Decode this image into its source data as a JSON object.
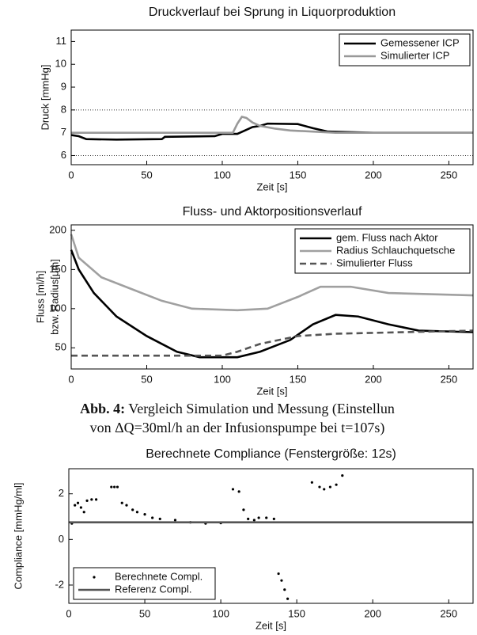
{
  "chart_data": [
    {
      "type": "line",
      "title": "Druckverlauf bei Sprung in Liquorproduktion",
      "xlabel": "Zeit [s]",
      "ylabel": [
        "Druck [mmHg]"
      ],
      "xlim": [
        0,
        266
      ],
      "xticks": [
        0,
        50,
        100,
        150,
        200,
        250
      ],
      "ylim": [
        5.6,
        11.5
      ],
      "yticks": [
        6,
        7,
        8,
        9,
        10,
        11
      ],
      "hlines": [
        6,
        8
      ],
      "legend": "upper right",
      "series": [
        {
          "name": "Gemessener ICP",
          "color": "#000000",
          "style": "solid",
          "x": [
            0,
            5,
            10,
            30,
            60,
            62,
            95,
            100,
            110,
            115,
            120,
            125,
            130,
            150,
            160,
            170,
            200,
            266
          ],
          "values": [
            6.9,
            6.85,
            6.72,
            6.7,
            6.72,
            6.82,
            6.85,
            6.95,
            6.95,
            7.1,
            7.25,
            7.3,
            7.4,
            7.38,
            7.2,
            7.05,
            7.0,
            7.0
          ]
        },
        {
          "name": "Simulierter ICP",
          "color": "#999999",
          "style": "solid",
          "x": [
            0,
            107,
            110,
            113,
            116,
            120,
            125,
            135,
            145,
            160,
            175,
            266
          ],
          "values": [
            7.0,
            7.0,
            7.4,
            7.7,
            7.65,
            7.45,
            7.3,
            7.18,
            7.1,
            7.05,
            7.0,
            7.0
          ]
        }
      ]
    },
    {
      "type": "line",
      "title": "Fluss- und Aktorpositionsverlauf",
      "xlabel": "Zeit [s]",
      "ylabel": [
        "Fluss [ml/h]",
        "bzw. Radius[µm]"
      ],
      "xlim": [
        0,
        266
      ],
      "xticks": [
        0,
        50,
        100,
        150,
        200,
        250
      ],
      "ylim": [
        23,
        207
      ],
      "yticks": [
        50,
        100,
        150,
        200
      ],
      "legend": "upper right",
      "series": [
        {
          "name": "gem. Fluss nach Aktor",
          "color": "#000000",
          "style": "solid",
          "x": [
            0,
            5,
            15,
            30,
            50,
            70,
            85,
            110,
            125,
            145,
            160,
            175,
            190,
            210,
            230,
            266
          ],
          "values": [
            175,
            150,
            120,
            90,
            65,
            45,
            38,
            38,
            45,
            60,
            80,
            92,
            90,
            80,
            72,
            70
          ]
        },
        {
          "name": "Radius Schlauchquetsche",
          "color": "#a0a0a0",
          "style": "solid",
          "x": [
            0,
            5,
            20,
            40,
            60,
            80,
            110,
            130,
            150,
            165,
            185,
            210,
            266
          ],
          "values": [
            195,
            165,
            140,
            125,
            110,
            100,
            98,
            100,
            115,
            128,
            128,
            120,
            117
          ]
        },
        {
          "name": "Simulierter Fluss",
          "color": "#555555",
          "style": "dashed",
          "x": [
            0,
            100,
            110,
            125,
            150,
            175,
            266
          ],
          "values": [
            40,
            40,
            45,
            55,
            65,
            68,
            72
          ]
        }
      ]
    },
    {
      "type": "line",
      "title": "Berechnete Compliance (Fenstergröße: 12s)",
      "xlabel": "Zeit [s]",
      "ylabel": [
        "Compliance [mmHg/ml]"
      ],
      "xlim": [
        0,
        266
      ],
      "xticks": [
        0,
        50,
        100,
        150,
        200,
        250
      ],
      "ylim": [
        -2.8,
        3.1
      ],
      "yticks": [
        -2,
        0,
        2
      ],
      "legend": "lower left",
      "series": [
        {
          "name": "Berechnete Compl.",
          "color": "#000000",
          "style": "dots",
          "x": [
            2,
            4,
            6,
            8,
            10,
            12,
            15,
            18,
            28,
            30,
            32,
            35,
            38,
            42,
            45,
            50,
            55,
            60,
            70,
            80,
            90,
            100,
            108,
            112,
            115,
            118,
            122,
            125,
            130,
            135,
            138,
            140,
            142,
            144,
            160,
            165,
            168,
            172,
            176,
            180
          ],
          "values": [
            0.7,
            1.5,
            1.6,
            1.4,
            1.2,
            1.7,
            1.75,
            1.75,
            2.3,
            2.3,
            2.3,
            1.6,
            1.5,
            1.3,
            1.2,
            1.1,
            0.95,
            0.9,
            0.85,
            0.75,
            0.7,
            0.72,
            2.2,
            2.1,
            1.3,
            0.9,
            0.85,
            0.95,
            0.95,
            0.9,
            -1.5,
            -1.8,
            -2.2,
            -2.6,
            2.5,
            2.3,
            2.2,
            2.3,
            2.4,
            2.8
          ]
        },
        {
          "name": "Referenz Compl.",
          "color": "#555555",
          "style": "solid",
          "x": [
            0,
            266
          ],
          "values": [
            0.75,
            0.75
          ]
        }
      ]
    }
  ],
  "caption": {
    "label": "Abb. 4:",
    "lines": [
      " Vergleich Simulation und Messung (Einstellun",
      "von ΔQ=30ml/h an der Infusionspumpe bei t=107s)"
    ]
  }
}
